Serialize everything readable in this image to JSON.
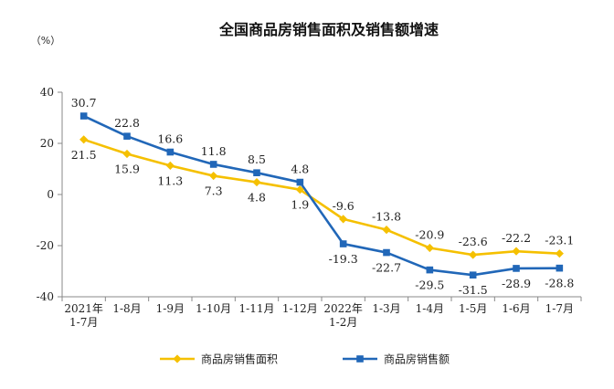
{
  "chart_data": {
    "type": "line",
    "title": "全国商品房销售面积及销售额增速",
    "unit_label": "（%）",
    "ylim": [
      -40,
      40
    ],
    "yticks": [
      "40",
      "20",
      "0",
      "-20",
      "-40"
    ],
    "ytick_values": [
      40,
      20,
      0,
      -20,
      -40
    ],
    "categories": [
      [
        "2021年",
        "1-7月"
      ],
      [
        "1-8月"
      ],
      [
        "1-9月"
      ],
      [
        "1-10月"
      ],
      [
        "1-11月"
      ],
      [
        "1-12月"
      ],
      [
        "2022年",
        "1-2月"
      ],
      [
        "1-3月"
      ],
      [
        "1-4月"
      ],
      [
        "1-5月"
      ],
      [
        "1-6月"
      ],
      [
        "1-7月"
      ]
    ],
    "series": [
      {
        "name": "商品房销售面积",
        "color": "#f5c000",
        "marker": "diamond",
        "values": [
          21.5,
          15.9,
          11.3,
          7.3,
          4.8,
          1.9,
          -9.6,
          -13.8,
          -20.9,
          -23.6,
          -22.2,
          -23.1
        ],
        "labels": [
          "21.5",
          "15.9",
          "11.3",
          "7.3",
          "4.8",
          "1.9",
          "-9.6",
          "-13.8",
          "-20.9",
          "-23.6",
          "-22.2",
          "-23.1"
        ]
      },
      {
        "name": "商品房销售额",
        "color": "#2167b8",
        "marker": "square",
        "values": [
          30.7,
          22.8,
          16.6,
          11.8,
          8.5,
          4.8,
          -19.3,
          -22.7,
          -29.5,
          -31.5,
          -28.9,
          -28.8
        ],
        "labels": [
          "30.7",
          "22.8",
          "16.6",
          "11.8",
          "8.5",
          "4.8",
          "-19.3",
          "-22.7",
          "-29.5",
          "-31.5",
          "-28.9",
          "-28.8"
        ]
      }
    ],
    "legend": [
      "商品房销售面积",
      "商品房销售额"
    ],
    "legend_position": "bottom"
  }
}
